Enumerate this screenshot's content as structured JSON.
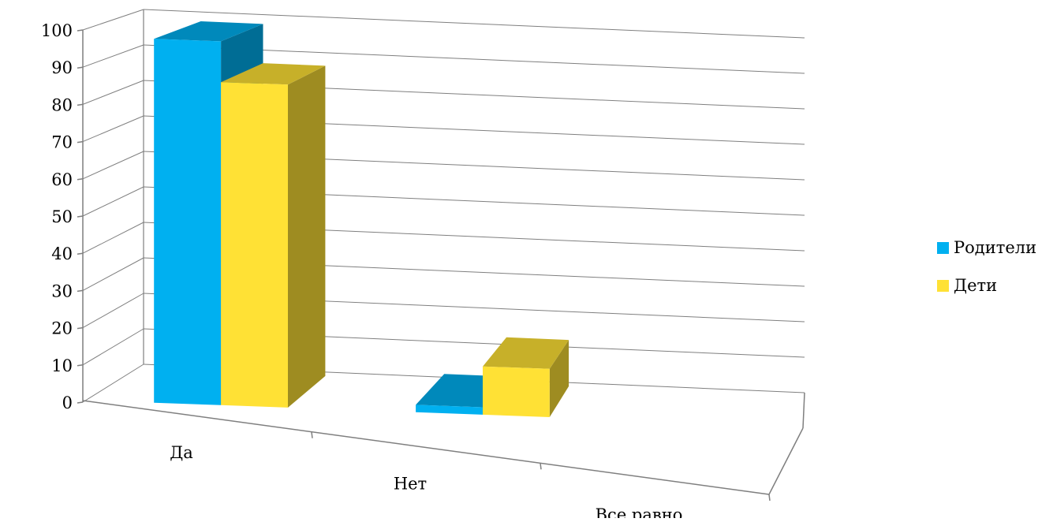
{
  "chart_data": {
    "type": "bar",
    "title": "",
    "xlabel": "",
    "ylabel": "",
    "ylim": [
      0,
      100
    ],
    "yticks": [
      "0",
      "10",
      "20",
      "30",
      "40",
      "50",
      "60",
      "70",
      "80",
      "90",
      "100"
    ],
    "categories": [
      "Да",
      "Нет",
      "Все равно"
    ],
    "series": [
      {
        "name": "Родители",
        "values": [
          98,
          2,
          0
        ],
        "color": "#00B0F0"
      },
      {
        "name": "Дети",
        "values": [
          87,
          13,
          0
        ],
        "color": "#FFE135"
      }
    ],
    "grid": true,
    "legend_position": "right",
    "style": "3d-clustered-column"
  }
}
